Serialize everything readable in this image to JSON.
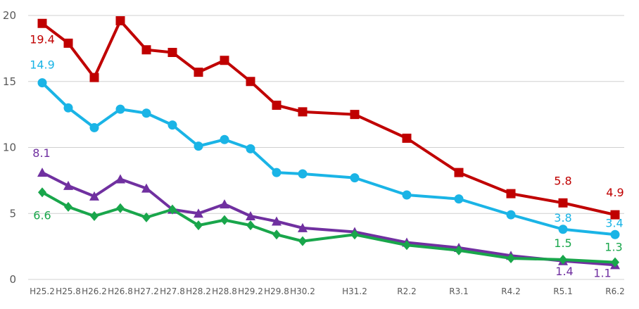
{
  "chart_data": {
    "type": "line",
    "categories": [
      "H25.2",
      "H25.8",
      "H26.2",
      "H26.8",
      "H27.2",
      "H27.8",
      "H28.2",
      "H28.8",
      "H29.2",
      "H29.8",
      "H30.2",
      "H31.2",
      "R2.2",
      "R3.1",
      "R4.2",
      "R5.1",
      "R6.2"
    ],
    "x": [
      0,
      1,
      2,
      3,
      4,
      5,
      6,
      7,
      8,
      9,
      10,
      12,
      14,
      16,
      18,
      20,
      22
    ],
    "ylim": [
      0,
      20
    ],
    "yticks": [
      "0",
      "5",
      "10",
      "15",
      "20"
    ],
    "grid": true,
    "series": [
      {
        "color": "#c00000",
        "marker": "square",
        "values": [
          19.4,
          17.9,
          15.3,
          19.6,
          17.4,
          17.2,
          15.7,
          16.6,
          15.0,
          13.2,
          12.7,
          12.5,
          10.7,
          8.1,
          6.5,
          5.8,
          4.9
        ],
        "labels": [
          {
            "index": 0,
            "text": "19.4",
            "dx": 0,
            "dy": 28
          },
          {
            "index": 15,
            "text": "5.8",
            "dx": 0,
            "dy": -26
          },
          {
            "index": 16,
            "text": "4.9",
            "dx": 0,
            "dy": -26
          }
        ]
      },
      {
        "color": "#1ab4e6",
        "marker": "circle",
        "values": [
          14.9,
          13.0,
          11.5,
          12.9,
          12.6,
          11.7,
          10.1,
          10.6,
          9.9,
          8.1,
          8.0,
          7.7,
          6.4,
          6.1,
          4.9,
          3.8,
          3.4
        ],
        "labels": [
          {
            "index": 0,
            "text": "14.9",
            "dx": 0,
            "dy": -20
          },
          {
            "index": 15,
            "text": "3.8",
            "dx": 0,
            "dy": -11
          },
          {
            "index": 16,
            "text": "3.4",
            "dx": -1,
            "dy": -11
          }
        ]
      },
      {
        "color": "#7030a0",
        "marker": "triangle",
        "values": [
          8.1,
          7.1,
          6.3,
          7.6,
          6.9,
          5.3,
          5.0,
          5.7,
          4.8,
          4.4,
          3.9,
          3.6,
          2.8,
          2.4,
          1.8,
          1.4,
          1.1
        ],
        "labels": [
          {
            "index": 0,
            "text": "8.1",
            "dx": -1,
            "dy": -22
          },
          {
            "index": 15,
            "text": "1.4",
            "dx": 2,
            "dy": 20
          },
          {
            "index": 16,
            "text": "1.1",
            "dx": -18,
            "dy": 17
          }
        ]
      },
      {
        "color": "#19a64b",
        "marker": "diamond",
        "values": [
          6.6,
          5.5,
          4.8,
          5.4,
          4.7,
          5.3,
          4.1,
          4.5,
          4.1,
          3.4,
          2.9,
          3.4,
          2.6,
          2.2,
          1.6,
          1.5,
          1.3
        ],
        "labels": [
          {
            "index": 0,
            "text": "6.6",
            "dx": 0,
            "dy": 38
          },
          {
            "index": 15,
            "text": "1.5",
            "dx": 0,
            "dy": -18
          },
          {
            "index": 16,
            "text": "1.3",
            "dx": -2,
            "dy": -16
          }
        ]
      }
    ]
  }
}
